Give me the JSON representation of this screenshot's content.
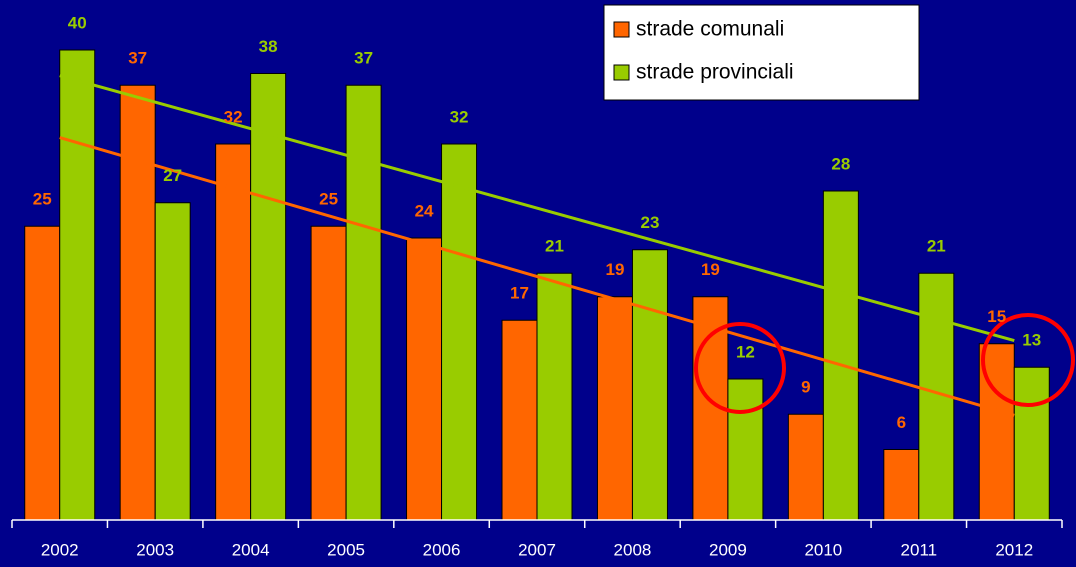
{
  "chart_data": {
    "type": "bar",
    "categories": [
      "2002",
      "2003",
      "2004",
      "2005",
      "2006",
      "2007",
      "2008",
      "2009",
      "2010",
      "2011",
      "2012"
    ],
    "series": [
      {
        "name": "strade comunali",
        "color": "#ff6600",
        "values": [
          25,
          37,
          32,
          25,
          24,
          17,
          19,
          19,
          9,
          6,
          15
        ]
      },
      {
        "name": "strade provinciali",
        "color": "#99cc00",
        "values": [
          40,
          27,
          38,
          37,
          32,
          21,
          23,
          12,
          28,
          21,
          13
        ]
      }
    ],
    "ylim": [
      0,
      40
    ],
    "trendlines": true,
    "legend": "top-right"
  }
}
